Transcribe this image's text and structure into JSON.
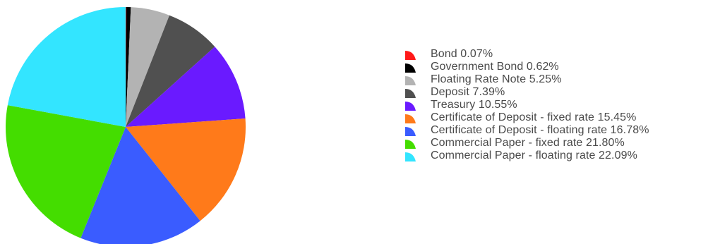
{
  "chart_data": {
    "type": "pie",
    "start_angle_deg": 0,
    "direction": "clockwise",
    "legend_position": "right",
    "slices": [
      {
        "label": "Bond",
        "value": 0.07,
        "display": "Bond 0.07%",
        "color": "#ff1a1a"
      },
      {
        "label": "Government Bond",
        "value": 0.62,
        "display": "Government Bond 0.62%",
        "color": "#000000"
      },
      {
        "label": "Floating Rate Note",
        "value": 5.25,
        "display": "Floating Rate Note 5.25%",
        "color": "#b3b3b3"
      },
      {
        "label": "Deposit",
        "value": 7.39,
        "display": "Deposit 7.39%",
        "color": "#505050"
      },
      {
        "label": "Treasury",
        "value": 10.55,
        "display": "Treasury 10.55%",
        "color": "#6a1aff"
      },
      {
        "label": "Certificate of Deposit - fixed rate",
        "value": 15.45,
        "display": "Certificate of Deposit - fixed rate 15.45%",
        "color": "#ff7a1a"
      },
      {
        "label": "Certificate of Deposit - floating rate",
        "value": 16.78,
        "display": "Certificate of Deposit - floating rate 16.78%",
        "color": "#3a5cff"
      },
      {
        "label": "Commercial Paper - fixed rate",
        "value": 21.8,
        "display": "Commercial Paper - fixed rate 21.80%",
        "color": "#44dd00"
      },
      {
        "label": "Commercial Paper - floating rate",
        "value": 22.09,
        "display": "Commercial Paper - floating rate 22.09%",
        "color": "#33e5ff"
      }
    ]
  }
}
